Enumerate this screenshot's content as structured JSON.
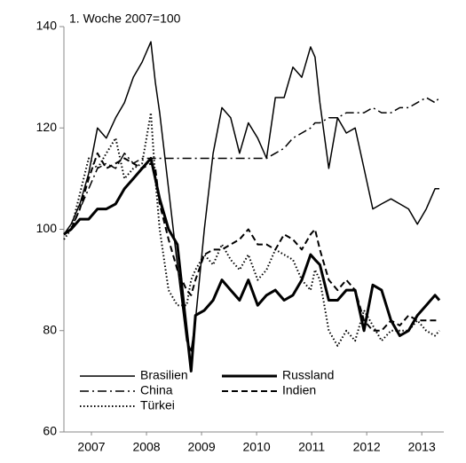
{
  "chart_data": {
    "type": "line",
    "annotation": "1. Woche 2007=100",
    "x": [
      2007.0,
      2007.13,
      2007.29,
      2007.45,
      2007.61,
      2007.77,
      2007.94,
      2008.1,
      2008.26,
      2008.42,
      2008.58,
      2008.66,
      2008.74,
      2008.9,
      2009.06,
      2009.23,
      2009.31,
      2009.39,
      2009.55,
      2009.71,
      2009.87,
      2010.03,
      2010.19,
      2010.35,
      2010.52,
      2010.68,
      2010.84,
      2011.0,
      2011.16,
      2011.32,
      2011.48,
      2011.56,
      2011.65,
      2011.81,
      2011.97,
      2012.13,
      2012.29,
      2012.45,
      2012.61,
      2012.77,
      2012.94,
      2013.1,
      2013.26,
      2013.42,
      2013.58,
      2013.74,
      2013.82
    ],
    "series": [
      {
        "name": "Brasilien",
        "color": "#000000",
        "line_style": "solid",
        "line_width": 1.5,
        "values": [
          99,
          101,
          105,
          111,
          120,
          118,
          122,
          125,
          130,
          133,
          137,
          129,
          123,
          108,
          93,
          78,
          76,
          82,
          100,
          115,
          124,
          122,
          115,
          121,
          118,
          114,
          126,
          126,
          132,
          130,
          136,
          134,
          125,
          112,
          122,
          119,
          120,
          112,
          104,
          105,
          106,
          105,
          104,
          101,
          104,
          108,
          108
        ]
      },
      {
        "name": "Russland",
        "color": "#000000",
        "line_style": "solid",
        "line_width": 3,
        "values": [
          99,
          100,
          102,
          102,
          104,
          104,
          105,
          108,
          110,
          112,
          114,
          110,
          106,
          100,
          97,
          80,
          72,
          83,
          84,
          86,
          90,
          88,
          86,
          90,
          85,
          87,
          88,
          86,
          87,
          90,
          95,
          94,
          93,
          86,
          86,
          88,
          88,
          80,
          89,
          88,
          82,
          79,
          80,
          83,
          85,
          87,
          86
        ]
      },
      {
        "name": "China",
        "color": "#000000",
        "line_style": "dashdot",
        "line_width": 1.5,
        "values": [
          99,
          100,
          104,
          108,
          112,
          113,
          112,
          115,
          113,
          114,
          114,
          114,
          114,
          114,
          114,
          114,
          114,
          114,
          114,
          114,
          114,
          114,
          114,
          114,
          114,
          114,
          115,
          116,
          118,
          119,
          120,
          121,
          121,
          122,
          122,
          123,
          123,
          123,
          124,
          123,
          123,
          124,
          124,
          125,
          126,
          125,
          126
        ]
      },
      {
        "name": "Indien",
        "color": "#000000",
        "line_style": "dashed",
        "line_width": 2,
        "values": [
          99,
          100,
          104,
          110,
          115,
          112,
          113,
          114,
          113,
          112,
          113,
          112,
          105,
          98,
          92,
          88,
          87,
          90,
          95,
          96,
          96,
          97,
          98,
          100,
          97,
          97,
          96,
          99,
          98,
          96,
          99,
          100,
          96,
          90,
          88,
          90,
          88,
          82,
          80,
          80,
          82,
          81,
          83,
          82,
          82,
          82,
          82
        ]
      },
      {
        "name": "Türkei",
        "color": "#000000",
        "line_style": "dotted",
        "line_width": 2,
        "values": [
          98,
          100,
          107,
          114,
          112,
          115,
          118,
          110,
          112,
          113,
          123,
          110,
          100,
          88,
          85,
          85,
          90,
          92,
          95,
          93,
          97,
          94,
          92,
          95,
          90,
          92,
          96,
          95,
          94,
          90,
          88,
          92,
          90,
          80,
          77,
          80,
          78,
          84,
          81,
          78,
          80,
          80,
          80,
          82,
          80,
          79,
          80
        ]
      }
    ],
    "xlim": [
      2007,
      2013.9
    ],
    "xticks": [
      {
        "value": 2007.5,
        "label": "2007"
      },
      {
        "value": 2008.5,
        "label": "2008"
      },
      {
        "value": 2009.5,
        "label": "2009"
      },
      {
        "value": 2010.5,
        "label": "2010"
      },
      {
        "value": 2011.5,
        "label": "2011"
      },
      {
        "value": 2012.5,
        "label": "2012"
      },
      {
        "value": 2013.5,
        "label": "2013"
      }
    ],
    "ylim": [
      60,
      140
    ],
    "yticks": [
      60,
      80,
      100,
      120,
      140
    ],
    "grid": false,
    "legend": "bottom"
  }
}
